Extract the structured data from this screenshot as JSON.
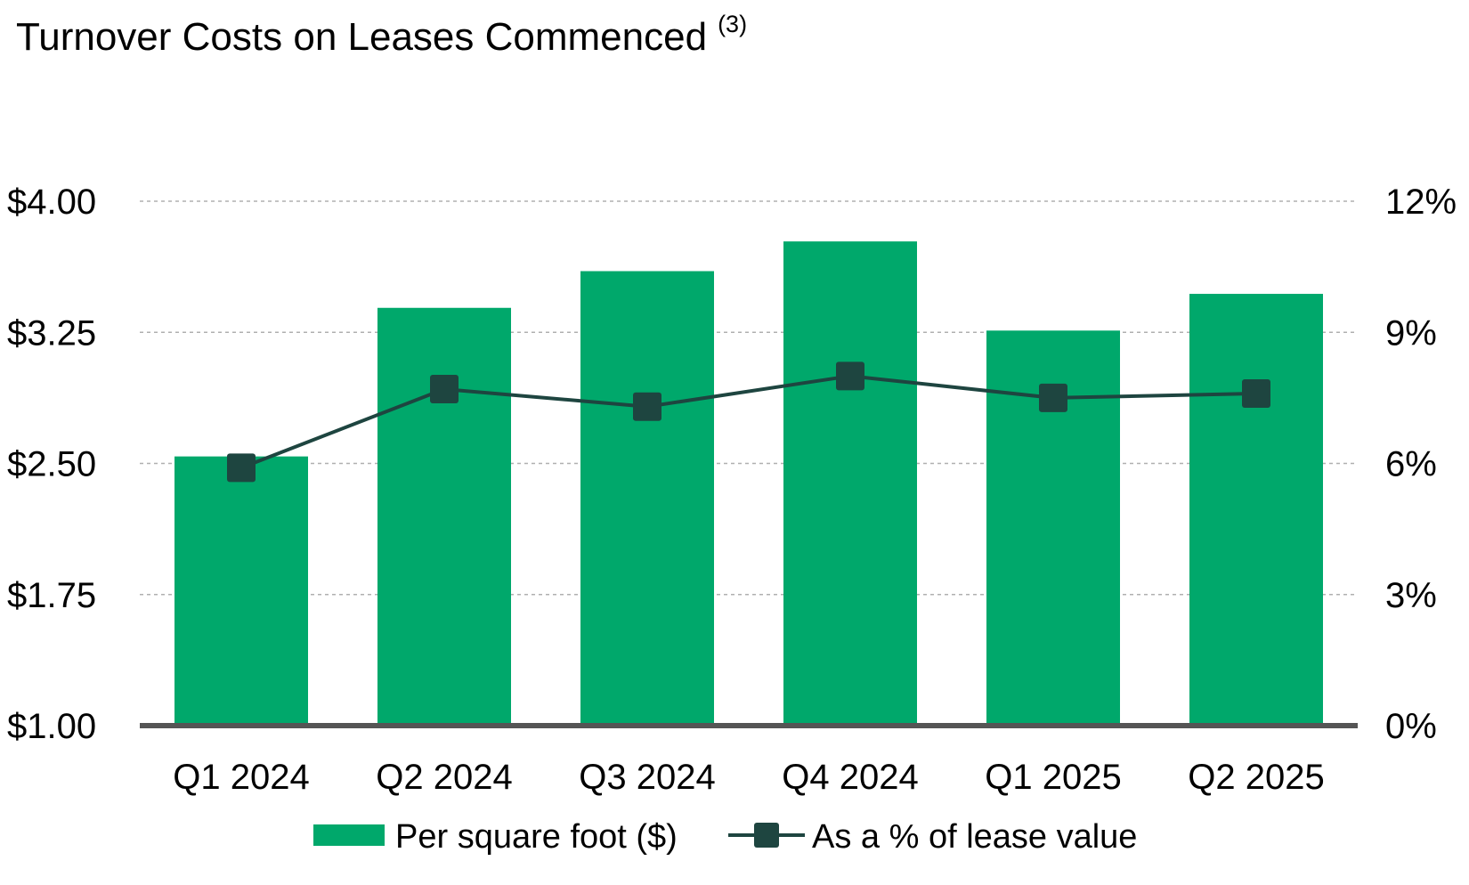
{
  "chart_data": {
    "type": "bar",
    "title": "Turnover Costs on Leases Commenced",
    "title_footnote": "(3)",
    "categories": [
      "Q1 2024",
      "Q2 2024",
      "Q3 2024",
      "Q4 2024",
      "Q1 2025",
      "Q2 2025"
    ],
    "series": [
      {
        "name": "Per square foot ($)",
        "type": "bar",
        "axis": "left",
        "color": "#00A86B",
        "values": [
          2.54,
          3.39,
          3.6,
          3.77,
          3.26,
          3.47
        ]
      },
      {
        "name": "As a % of lease value",
        "type": "line",
        "axis": "right",
        "color": "#1E4540",
        "marker": "square",
        "values": [
          5.9,
          7.7,
          7.3,
          8.0,
          7.5,
          7.6
        ]
      }
    ],
    "y_left": {
      "ylim": [
        1.0,
        4.0
      ],
      "ticks": [
        1.0,
        1.75,
        2.5,
        3.25,
        4.0
      ],
      "tick_labels": [
        "$1.00",
        "$1.75",
        "$2.50",
        "$3.25",
        "$4.00"
      ]
    },
    "y_right": {
      "ylim": [
        0,
        12
      ],
      "ticks": [
        0,
        3,
        6,
        9,
        12
      ],
      "tick_labels": [
        "0%",
        "3%",
        "6%",
        "9%",
        "12%"
      ]
    },
    "grid": true,
    "legend_position": "bottom-center"
  }
}
